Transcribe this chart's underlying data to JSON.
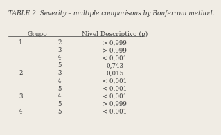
{
  "title": "TABLE 2. Severity – multiple comparisons by Bonferroni method.",
  "col1_header": "Grupo",
  "col2_header": "Nivel Descriptivo (p)",
  "rows": [
    [
      "1",
      "2",
      "> 0,999"
    ],
    [
      "",
      "3",
      "> 0,999"
    ],
    [
      "",
      "4",
      "< 0,001"
    ],
    [
      "",
      "5",
      "0,743"
    ],
    [
      "2",
      "3",
      "0,015"
    ],
    [
      "",
      "4",
      "< 0,001"
    ],
    [
      "",
      "5",
      "< 0,001"
    ],
    [
      "3",
      "4",
      "< 0,001"
    ],
    [
      "",
      "5",
      "> 0,999"
    ],
    [
      "4",
      "5",
      "< 0,001"
    ]
  ],
  "bg_color": "#f0ece4",
  "text_color": "#3a3a3a",
  "title_fontsize": 6.5,
  "header_fontsize": 6.5,
  "row_fontsize": 6.2
}
